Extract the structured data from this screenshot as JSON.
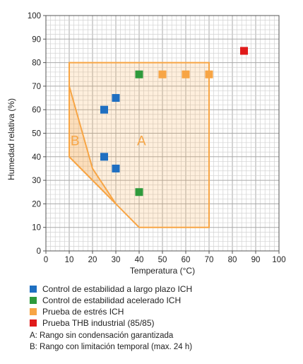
{
  "chart_data": {
    "type": "scatter",
    "xlabel": "Temperatura (°C)",
    "ylabel": "Humedad relativa (%)",
    "xlim": [
      0,
      100
    ],
    "ylim": [
      0,
      100
    ],
    "xticks": [
      "0",
      "10",
      "20",
      "30",
      "40",
      "50",
      "60",
      "70",
      "80",
      "90",
      "100"
    ],
    "yticks": [
      "0",
      "10",
      "20",
      "30",
      "40",
      "50",
      "60",
      "70",
      "80",
      "90",
      "100"
    ],
    "grid": true,
    "series": [
      {
        "name": "Control de estabilidad a largo plazo ICH",
        "color": "#1f6fc1",
        "points": [
          [
            25,
            60
          ],
          [
            30,
            65
          ],
          [
            25,
            40
          ],
          [
            30,
            35
          ]
        ]
      },
      {
        "name": "Control de estabilidad acelerado ICH",
        "color": "#2e9a3c",
        "points": [
          [
            40,
            75
          ],
          [
            40,
            25
          ]
        ]
      },
      {
        "name": "Prueba de estrés ICH",
        "color": "#f7a545",
        "points": [
          [
            50,
            75
          ],
          [
            60,
            75
          ],
          [
            70,
            75
          ]
        ]
      },
      {
        "name": "Prueba THB industrial (85/85)",
        "color": "#e01b1b",
        "points": [
          [
            85,
            85
          ]
        ]
      }
    ],
    "regions": [
      {
        "label": "A",
        "color": "#f7a545",
        "polygon": [
          [
            10,
            80
          ],
          [
            70,
            80
          ],
          [
            70,
            10
          ],
          [
            40,
            10
          ],
          [
            30,
            20
          ],
          [
            10,
            40
          ]
        ],
        "label_pos": [
          41,
          47
        ]
      },
      {
        "label": "B",
        "color": "#f7a545",
        "polygon": [
          [
            10,
            70
          ],
          [
            20,
            35
          ],
          [
            30,
            20
          ],
          [
            20,
            30
          ],
          [
            10,
            40
          ]
        ],
        "label_pos": [
          12.5,
          47
        ]
      }
    ],
    "notes": [
      "A: Rango sin condensación garantizada",
      "B: Rango con limitación temporal (max. 24 h)"
    ]
  }
}
